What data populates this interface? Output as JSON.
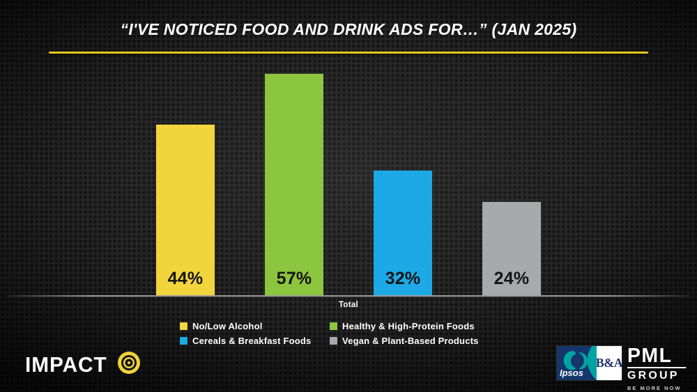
{
  "slide": {
    "title": "“I'VE NOTICED FOOD AND DRINK ADS FOR…” (JAN 2025)"
  },
  "chart_data": {
    "type": "bar",
    "title": "“I'VE NOTICED FOOD AND DRINK ADS FOR…” (JAN 2025)",
    "categories": [
      "Total"
    ],
    "series": [
      {
        "name": "No/Low Alcohol",
        "values": [
          44
        ],
        "display": "44%",
        "color": "#F2D43D"
      },
      {
        "name": "Healthy & High-Protein Foods",
        "values": [
          57
        ],
        "display": "57%",
        "color": "#8CC63F"
      },
      {
        "name": "Cereals & Breakfast Foods",
        "values": [
          32
        ],
        "display": "32%",
        "color": "#1CA9E5"
      },
      {
        "name": "Vegan & Plant-Based Products",
        "values": [
          24
        ],
        "display": "24%",
        "color": "#A7A9AC"
      }
    ],
    "ylim": [
      0,
      60
    ],
    "xlabel": "",
    "ylabel": "",
    "grid": false,
    "legend_position": "bottom",
    "value_label_position": "inside-base"
  },
  "axis": {
    "category_label": "Total"
  },
  "branding": {
    "impact": "IMPACT",
    "ipsos": "Ipsos",
    "ba": "B&A",
    "pml": "PML",
    "pml_group": "GROUP",
    "pml_tagline": "BE MORE NOW"
  },
  "colors": {
    "divider": "#E8C71E",
    "background": "#2A2A2A",
    "axis_line": "#9C9C9C",
    "title_text": "#FFFFFF",
    "bar_label_text": "#141414",
    "icon_yellow": "#EFD23B",
    "ipsos_navy": "#14366B",
    "ipsos_teal": "#00A3A1"
  }
}
